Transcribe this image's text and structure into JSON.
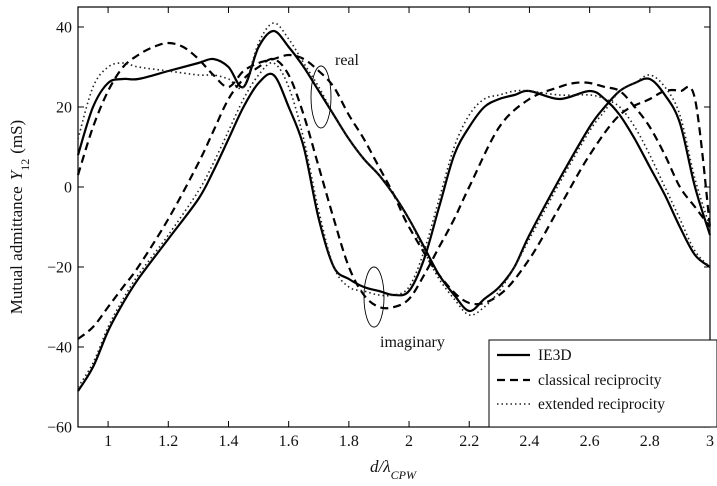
{
  "chart_data": {
    "type": "line",
    "xlabel": "d/λ",
    "xlabel_subscript": "CPW",
    "ylabel": "Mutual admittance",
    "ylabel_symbol": "Y",
    "ylabel_subscript": "12",
    "ylabel_unit": "(mS)",
    "xlim": [
      0.9,
      3.0
    ],
    "ylim": [
      -60,
      45
    ],
    "xticks": [
      1,
      1.2,
      1.4,
      1.6,
      1.8,
      2,
      2.2,
      2.4,
      2.6,
      2.8,
      3
    ],
    "xtick_labels": [
      "1",
      "1.2",
      "1.4",
      "1.6",
      "1.8",
      "2",
      "2.2",
      "2.4",
      "2.6",
      "2.8",
      "3"
    ],
    "yticks": [
      -60,
      -40,
      -20,
      0,
      20,
      40
    ],
    "ytick_labels": [
      "−60",
      "−40",
      "−20",
      "0",
      "20",
      "40"
    ],
    "grid": false,
    "legend_position": "bottom-right",
    "legend": [
      {
        "label": "IE3D",
        "style": "solid"
      },
      {
        "label": "classical reciprocity",
        "style": "dashed"
      },
      {
        "label": "extended reciprocity",
        "style": "dotted"
      }
    ],
    "annotations": [
      {
        "text": "real",
        "x": 1.71,
        "y": 21
      },
      {
        "text": "imaginary",
        "x": 1.88,
        "y": -29
      }
    ],
    "series": [
      {
        "style": "solid",
        "part": "real",
        "x": [
          0.9,
          0.95,
          1.0,
          1.05,
          1.1,
          1.2,
          1.3,
          1.35,
          1.4,
          1.45,
          1.5,
          1.55,
          1.6,
          1.65,
          1.7,
          1.75,
          1.8,
          1.85,
          1.9,
          1.95,
          2.0,
          2.05,
          2.1,
          2.15,
          2.2,
          2.25,
          2.3,
          2.35,
          2.4,
          2.5,
          2.6,
          2.65,
          2.7,
          2.75,
          2.8,
          2.85,
          2.9,
          2.95,
          3.0
        ],
        "y": [
          8,
          20,
          26,
          27,
          27,
          29,
          31,
          32,
          30,
          25,
          35,
          39,
          35,
          30,
          24,
          18,
          12,
          7,
          3,
          -2,
          -8,
          -15,
          -22,
          -27,
          -31,
          -28,
          -25,
          -20,
          -12,
          2,
          15,
          20,
          24,
          26,
          27,
          23,
          16,
          0,
          -12
        ]
      },
      {
        "style": "dashed",
        "part": "real",
        "x": [
          0.9,
          0.95,
          1.0,
          1.05,
          1.1,
          1.15,
          1.2,
          1.25,
          1.3,
          1.35,
          1.4,
          1.45,
          1.5,
          1.55,
          1.6,
          1.65,
          1.7,
          1.75,
          1.8,
          1.85,
          1.9,
          1.95,
          2.0,
          2.1,
          2.2,
          2.3,
          2.4,
          2.5,
          2.6,
          2.7,
          2.8,
          2.85,
          2.9,
          2.95,
          3.0
        ],
        "y": [
          3,
          15,
          24,
          30,
          33,
          35,
          36,
          35,
          32,
          28,
          25,
          29,
          31,
          32,
          33,
          32,
          29,
          25,
          18,
          12,
          5,
          -2,
          -10,
          -22,
          -29,
          -27,
          -18,
          -5,
          8,
          18,
          22,
          24,
          24,
          22,
          -10
        ]
      },
      {
        "style": "dotted",
        "part": "real",
        "x": [
          0.9,
          0.95,
          1.0,
          1.05,
          1.1,
          1.2,
          1.3,
          1.35,
          1.4,
          1.45,
          1.5,
          1.55,
          1.6,
          1.65,
          1.7,
          1.75,
          1.8,
          1.85,
          1.9,
          1.95,
          2.0,
          2.05,
          2.1,
          2.15,
          2.2,
          2.25,
          2.3,
          2.35,
          2.4,
          2.5,
          2.6,
          2.65,
          2.7,
          2.75,
          2.8,
          2.85,
          2.9,
          2.95,
          3.0
        ],
        "y": [
          12,
          25,
          30,
          31,
          30,
          29,
          28,
          28,
          27,
          25,
          36,
          41,
          37,
          31,
          25,
          18,
          12,
          7,
          3,
          -2,
          -8,
          -16,
          -23,
          -28,
          -32,
          -30,
          -26,
          -20,
          -13,
          1,
          14,
          19,
          24,
          26,
          28,
          25,
          18,
          2,
          -10
        ]
      },
      {
        "style": "solid",
        "part": "imaginary",
        "x": [
          0.9,
          0.95,
          1.0,
          1.05,
          1.1,
          1.2,
          1.3,
          1.35,
          1.4,
          1.45,
          1.5,
          1.55,
          1.6,
          1.65,
          1.7,
          1.75,
          1.8,
          1.85,
          1.9,
          1.95,
          2.0,
          2.05,
          2.1,
          2.15,
          2.2,
          2.25,
          2.3,
          2.35,
          2.4,
          2.5,
          2.6,
          2.65,
          2.7,
          2.75,
          2.8,
          2.85,
          2.9,
          2.95,
          3.0
        ],
        "y": [
          -51,
          -45,
          -36,
          -29,
          -23,
          -13,
          -3,
          4,
          12,
          20,
          26,
          28,
          20,
          10,
          -8,
          -20,
          -23,
          -25,
          -26,
          -27,
          -26,
          -18,
          -5,
          8,
          15,
          20,
          22,
          23,
          24,
          22,
          24,
          22,
          18,
          12,
          5,
          -2,
          -10,
          -17,
          -20
        ]
      },
      {
        "style": "dashed",
        "part": "imaginary",
        "x": [
          0.9,
          0.95,
          1.0,
          1.05,
          1.1,
          1.2,
          1.3,
          1.35,
          1.4,
          1.45,
          1.5,
          1.55,
          1.6,
          1.65,
          1.7,
          1.75,
          1.8,
          1.85,
          1.9,
          1.95,
          2.0,
          2.05,
          2.1,
          2.15,
          2.2,
          2.3,
          2.4,
          2.5,
          2.55,
          2.6,
          2.65,
          2.7,
          2.75,
          2.8,
          2.85,
          2.9,
          2.95,
          3.0
        ],
        "y": [
          -38,
          -35,
          -30,
          -25,
          -20,
          -8,
          6,
          14,
          22,
          27,
          30,
          32,
          28,
          18,
          5,
          -8,
          -20,
          -27,
          -30,
          -30,
          -28,
          -22,
          -15,
          -8,
          0,
          15,
          22,
          25,
          26,
          26,
          25,
          24,
          20,
          15,
          8,
          0,
          -5,
          -10
        ]
      },
      {
        "style": "dotted",
        "part": "imaginary",
        "x": [
          0.9,
          0.95,
          1.0,
          1.05,
          1.1,
          1.2,
          1.3,
          1.35,
          1.4,
          1.45,
          1.5,
          1.55,
          1.6,
          1.65,
          1.7,
          1.75,
          1.8,
          1.85,
          1.9,
          1.95,
          2.0,
          2.05,
          2.1,
          2.15,
          2.2,
          2.25,
          2.3,
          2.35,
          2.4,
          2.5,
          2.6,
          2.65,
          2.7,
          2.75,
          2.8,
          2.85,
          2.9,
          2.95,
          3.0
        ],
        "y": [
          -50,
          -44,
          -35,
          -28,
          -22,
          -12,
          -1,
          6,
          14,
          22,
          28,
          31,
          25,
          12,
          -6,
          -20,
          -25,
          -26,
          -27,
          -27,
          -25,
          -16,
          -3,
          10,
          18,
          22,
          23,
          24,
          24,
          23,
          23,
          22,
          20,
          15,
          8,
          0,
          -8,
          -16,
          -20
        ]
      }
    ]
  }
}
